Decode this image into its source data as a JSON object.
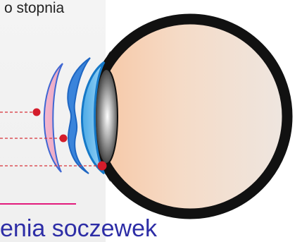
{
  "caption_top": "o stopnia",
  "title_bottom": "enia soczewek",
  "colors": {
    "accent_pink": "#e21b7c",
    "title_blue": "#2d2da6",
    "marker_red": "#d41c2b",
    "leader_line": "#d8323a"
  },
  "diagram": {
    "markers": [
      {
        "id": "marker-1"
      },
      {
        "id": "marker-2"
      },
      {
        "id": "marker-3"
      }
    ]
  }
}
